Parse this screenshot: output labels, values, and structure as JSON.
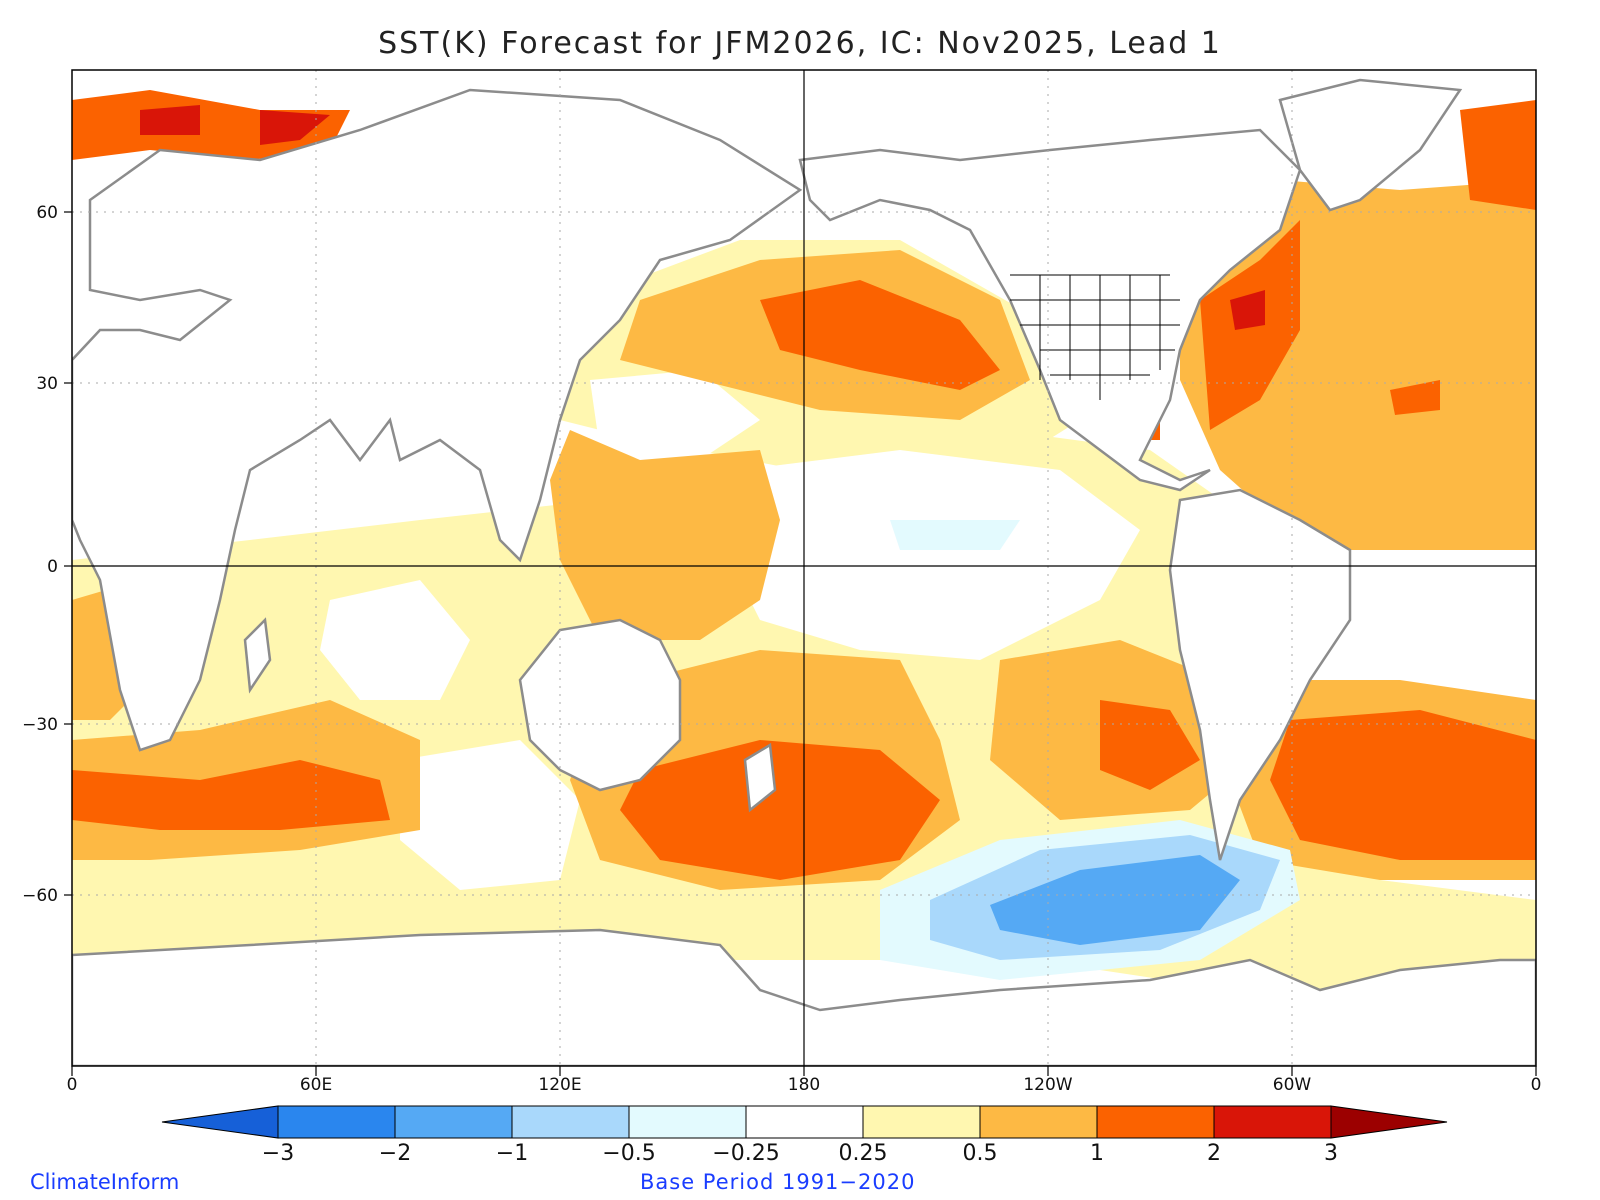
{
  "title": "SST(K) Forecast for JFM2026, IC: Nov2025, Lead 1",
  "map": {
    "lon_ticks": [
      "0",
      "60E",
      "120E",
      "180",
      "120W",
      "60W",
      "0"
    ],
    "lat_ticks": [
      "60",
      "30",
      "0",
      "−30",
      "−60"
    ],
    "lon_range": [
      0,
      360
    ],
    "lat_range": [
      -85,
      85
    ]
  },
  "colorbar": {
    "labels": [
      "−3",
      "−2",
      "−1",
      "−0.5",
      "−0.25",
      "0.25",
      "0.5",
      "1",
      "2",
      "3"
    ],
    "colors": [
      "#1660d8",
      "#2a86ee",
      "#55a9f4",
      "#a9d8fb",
      "#e3fafe",
      "#ffffff",
      "#fff7b0",
      "#fdb944",
      "#fb6200",
      "#d91508",
      "#9c0000"
    ]
  },
  "credits": {
    "left": "ClimateInform",
    "center": "Base Period 1991−2020"
  }
}
